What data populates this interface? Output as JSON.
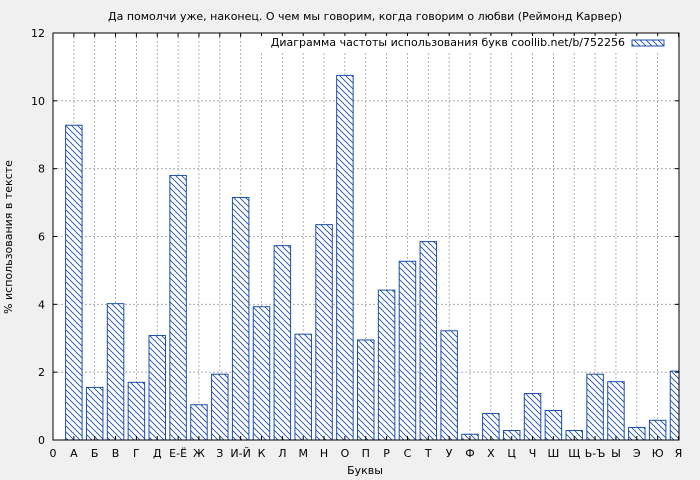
{
  "chart_data": {
    "type": "bar",
    "title": "Да помолчи уже, наконец. О чем мы говорим, когда говорим о любви (Реймонд Карвер)",
    "xlabel": "Буквы",
    "ylabel": "% использования в тексте",
    "legend_label": "Диаграмма частоты использования букв coollib.net/b/752256",
    "legend_position": "top-right",
    "grid": true,
    "ylim": [
      0,
      12
    ],
    "yticks": [
      "0",
      "2",
      "4",
      "6",
      "8",
      "10",
      "12"
    ],
    "x_start_label": "0",
    "categories": [
      "А",
      "Б",
      "В",
      "Г",
      "Д",
      "Е-Ё",
      "Ж",
      "З",
      "И-Й",
      "К",
      "Л",
      "М",
      "Н",
      "О",
      "П",
      "Р",
      "С",
      "Т",
      "У",
      "Ф",
      "Х",
      "Ц",
      "Ч",
      "Ш",
      "Щ",
      "Ь-Ъ",
      "Ы",
      "Э",
      "Ю",
      "Я"
    ],
    "values": [
      9.28,
      1.55,
      4.02,
      1.7,
      3.08,
      7.8,
      1.04,
      1.94,
      7.15,
      3.93,
      5.73,
      3.12,
      6.35,
      10.75,
      2.95,
      4.42,
      5.27,
      5.85,
      3.22,
      0.17,
      0.78,
      0.28,
      1.37,
      0.87,
      0.28,
      1.94,
      1.72,
      0.37,
      0.58,
      2.03
    ],
    "colors": {
      "bar_stroke": "#1d4fa8",
      "hatch": "#1d4fa8",
      "background": "#f0f0f0",
      "plot_bg": "#ffffff",
      "grid": "#a0a0a0"
    }
  }
}
